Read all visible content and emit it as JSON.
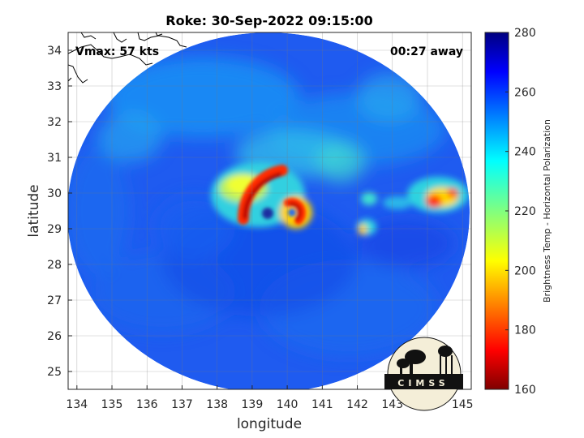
{
  "title": "Roke: 30-Sep-2022 09:15:00",
  "vmax_label": "Vmax: 57 kts",
  "away_label": "00:27 away",
  "xlabel": "longitude",
  "ylabel": "latitude",
  "colorbar_label": "Brightness Temp - Horizontal Polarization",
  "logo_text": "CIMSS",
  "map": {
    "lon_range": [
      133.75,
      145.25
    ],
    "lat_range": [
      24.5,
      34.5
    ],
    "lon_ticks": [
      134,
      135,
      136,
      137,
      138,
      139,
      140,
      141,
      142,
      143,
      144,
      145
    ],
    "lat_ticks": [
      25,
      26,
      27,
      28,
      29,
      30,
      31,
      32,
      33,
      34
    ],
    "grid": true,
    "swath_center": [
      139.5,
      29.5
    ]
  },
  "colorbar": {
    "range": [
      160,
      280
    ],
    "ticks": [
      160,
      180,
      200,
      220,
      240,
      260,
      280
    ],
    "colormap": "jet"
  }
}
